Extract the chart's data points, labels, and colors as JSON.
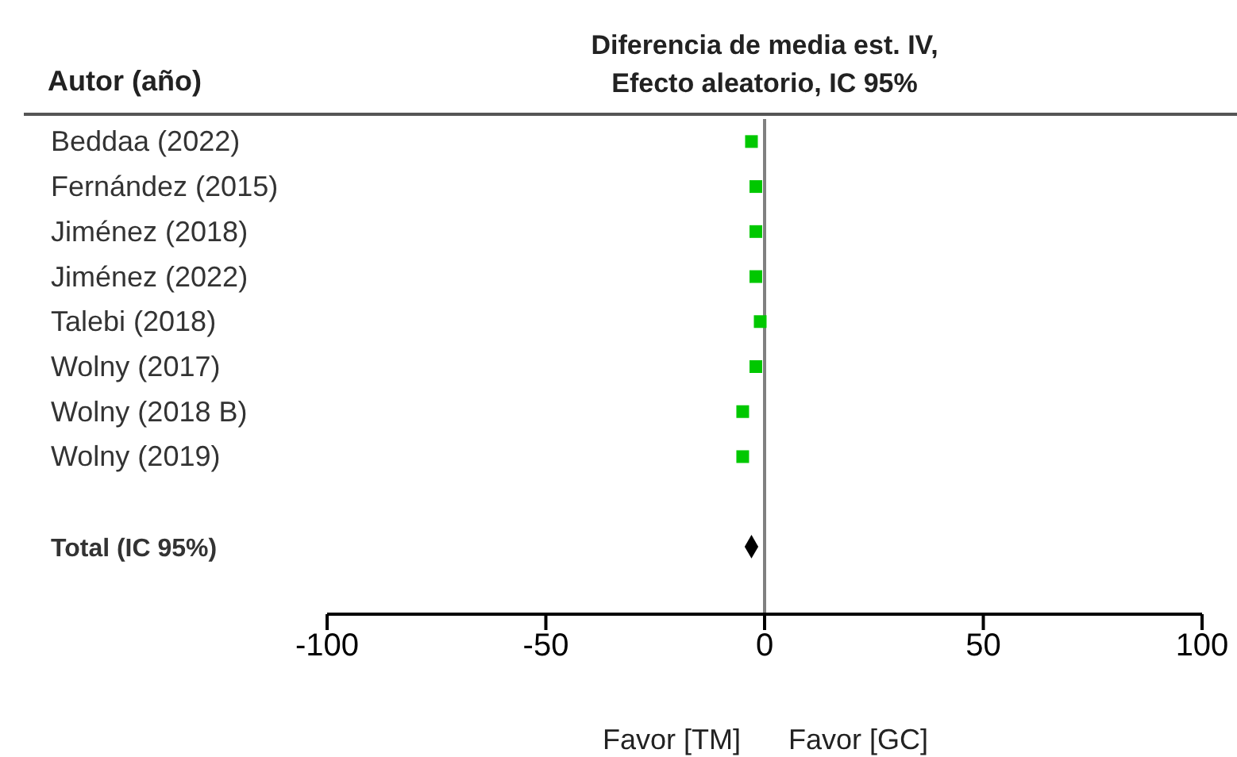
{
  "chart_data": {
    "type": "scatter",
    "orientation": "horizontal",
    "title": "Diferencia de media est. IV, Efecto aleatorio, IC 95%",
    "ylabel": "Autor (año)",
    "categories": [
      "Beddaa (2022)",
      "Fernández (2015)",
      "Jiménez (2018)",
      "Jiménez (2022)",
      "Talebi (2018)",
      "Wolny (2017)",
      "Wolny (2018 B)",
      "Wolny (2019)",
      null,
      "Total (IC 95%)"
    ],
    "series": [
      {
        "color": "#00c800",
        "marker": "square",
        "values": [
          -3,
          -2,
          -2,
          -2,
          -1,
          -2,
          -5,
          -5,
          null,
          null
        ]
      },
      {
        "color": "#000000",
        "marker": "diamond",
        "values": [
          null,
          null,
          null,
          null,
          null,
          null,
          null,
          null,
          null,
          -3
        ]
      }
    ],
    "xlim": [
      -100,
      100
    ],
    "xticks": [
      -100,
      -50,
      0,
      50,
      100
    ],
    "ref_lines": [
      {
        "axis": "x",
        "value": 0,
        "color": "#808080"
      }
    ],
    "annotations": [
      "Favor [TM]",
      "Favor [GC]"
    ],
    "grid": false
  }
}
